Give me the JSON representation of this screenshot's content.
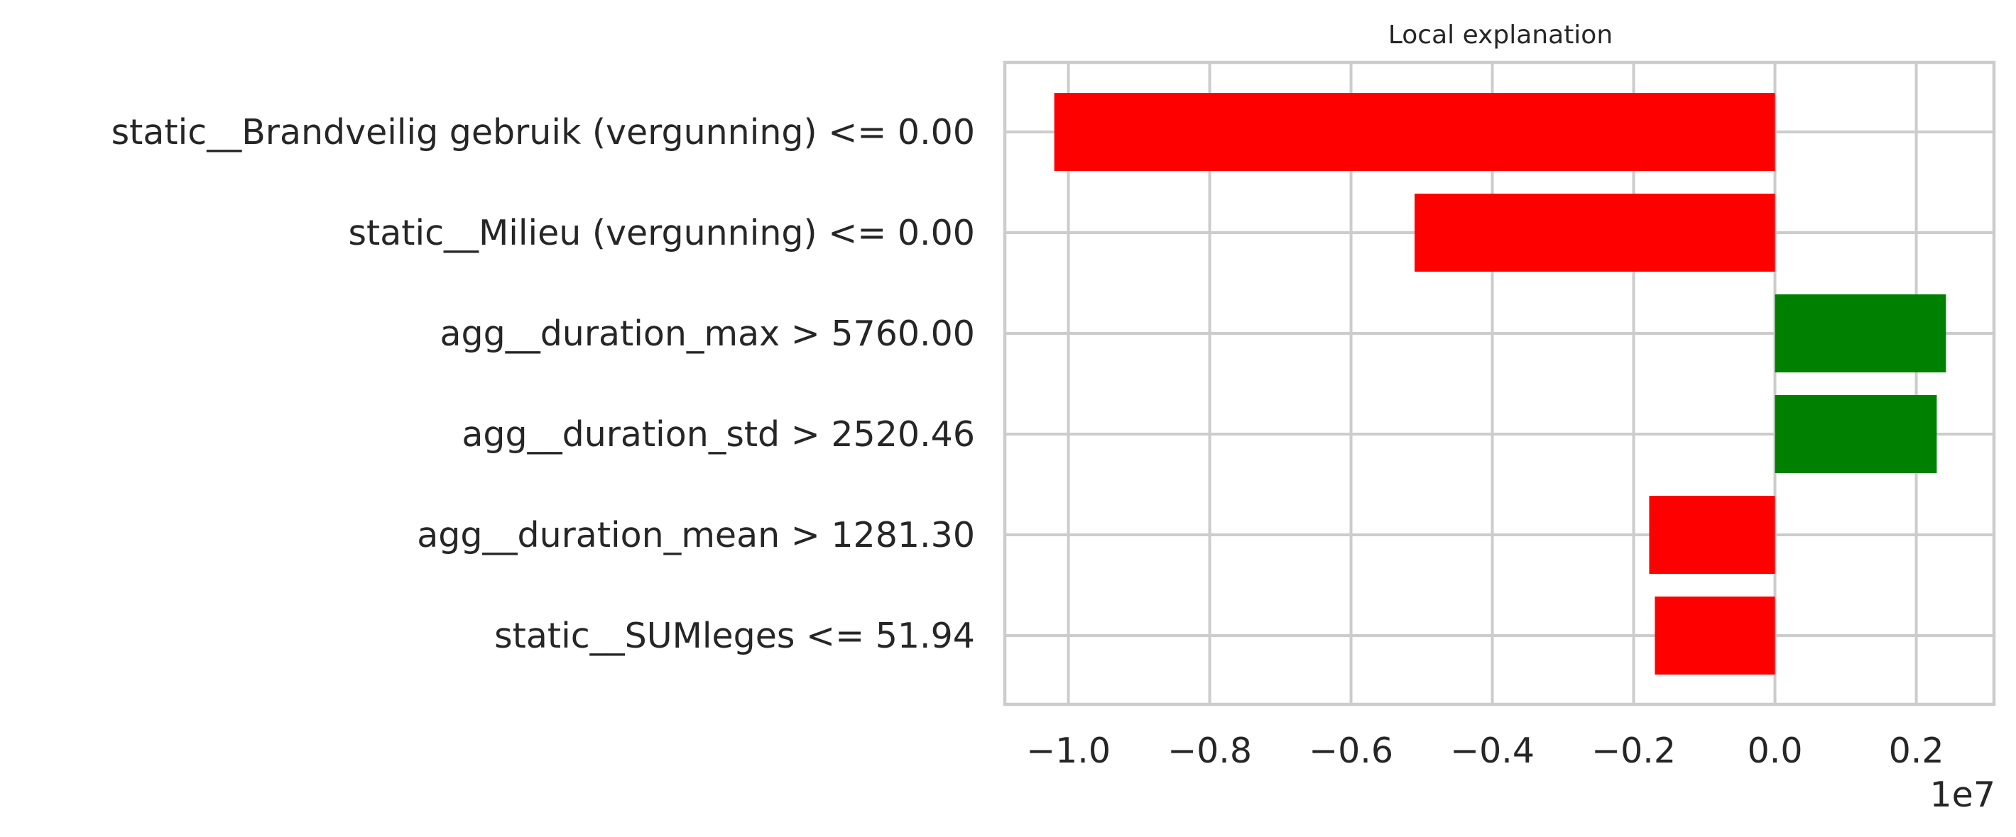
{
  "chart_data": {
    "type": "bar",
    "orientation": "horizontal",
    "title": "Local explanation",
    "categories": [
      "static__Brandveilig gebruik (vergunning) <= 0.00",
      "static__Milieu (vergunning) <= 0.00",
      "agg__duration_max > 5760.00",
      "agg__duration_std > 2520.46",
      "agg__duration_mean > 1281.30",
      "static__SUMleges <= 51.94"
    ],
    "values": [
      -10200000,
      -5100000,
      2420000,
      2290000,
      -1780000,
      -1700000
    ],
    "colors": [
      "#ff0000",
      "#ff0000",
      "#008000",
      "#008000",
      "#ff0000",
      "#ff0000"
    ],
    "positive_color": "#008000",
    "negative_color": "#ff0000",
    "xlim": [
      -10900000,
      3100000
    ],
    "xticks": [
      -10000000,
      -8000000,
      -6000000,
      -4000000,
      -2000000,
      0,
      2000000
    ],
    "xtick_labels": [
      "−1.0",
      "−0.8",
      "−0.6",
      "−0.4",
      "−0.2",
      "0.0",
      "0.2"
    ],
    "x_offset_label": "1e7",
    "xlabel": "",
    "ylabel": "",
    "grid": true
  }
}
